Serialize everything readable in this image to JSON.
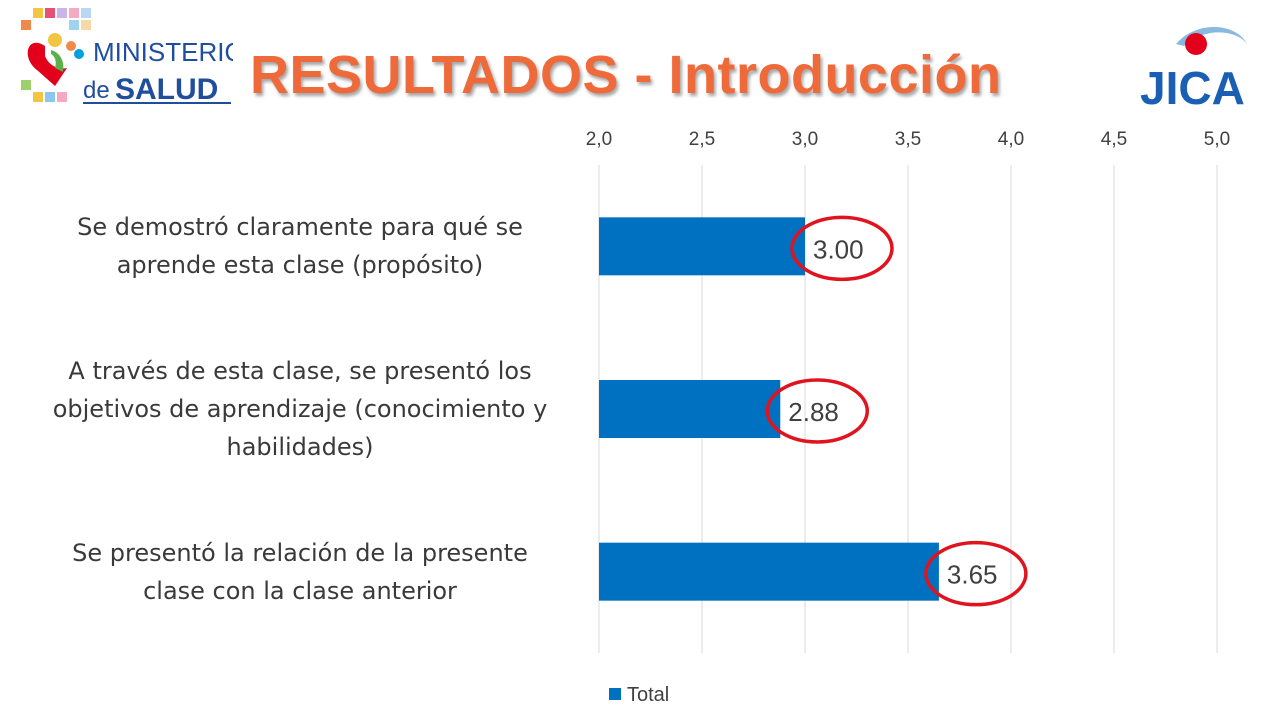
{
  "header": {
    "title": "RESULTADOS - Introducción",
    "title_color": "#ef6a3a"
  },
  "logos": {
    "ministerio": {
      "line1": "MINISTERIO",
      "line2_prefix": "de",
      "line2_main": "SALUD",
      "color": "#1f4e9c"
    },
    "jica": {
      "text": "JICA",
      "color": "#1a5fb4",
      "accent": "#e2001a"
    }
  },
  "chart_data": {
    "type": "bar",
    "orientation": "horizontal",
    "categories": [
      "Se demostró claramente para qué se aprende esta clase (propósito)",
      "A través de esta clase, se presentó los objetivos de aprendizaje (conocimiento y habilidades)",
      "Se presentó la relación de la presente clase con la clase anterior"
    ],
    "category_lines": [
      [
        "Se demostró claramente para qué se",
        "aprende esta clase (propósito)"
      ],
      [
        "A través de esta clase, se presentó los",
        "objetivos de aprendizaje (conocimiento y",
        "habilidades)"
      ],
      [
        "Se presentó la relación de la presente",
        "clase con la clase anterior"
      ]
    ],
    "series": [
      {
        "name": "Total",
        "values": [
          3.0,
          2.88,
          3.65
        ],
        "color": "#0070c0"
      }
    ],
    "data_labels": [
      "3.00",
      "2.88",
      "3.65"
    ],
    "xlim": [
      2.0,
      5.0
    ],
    "x_ticks": [
      2.0,
      2.5,
      3.0,
      3.5,
      4.0,
      4.5,
      5.0
    ],
    "x_tick_labels": [
      "2,0",
      "2,5",
      "3,0",
      "3,5",
      "4,0",
      "4,5",
      "5,0"
    ],
    "x_axis_position": "top",
    "grid": true,
    "legend_position": "bottom",
    "highlight_color": "#e0141e"
  }
}
